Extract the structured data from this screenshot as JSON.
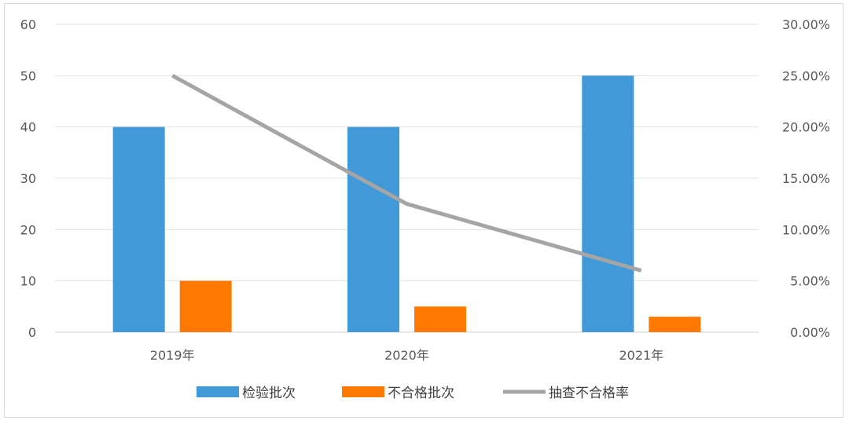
{
  "chart_data": {
    "type": "bar",
    "categories": [
      "2019年",
      "2020年",
      "2021年"
    ],
    "series": [
      {
        "name": "检验批次",
        "kind": "bar",
        "axis": "left",
        "color": "#4299d8",
        "values": [
          40,
          40,
          50
        ]
      },
      {
        "name": "不合格批次",
        "kind": "bar",
        "axis": "left",
        "color": "#ff7800",
        "values": [
          10,
          5,
          3
        ]
      },
      {
        "name": "抽查不合格率",
        "kind": "line",
        "axis": "right",
        "color": "#a5a5a5",
        "values": [
          25.0,
          12.5,
          6.0
        ]
      }
    ],
    "y_left": {
      "ylim": [
        0,
        60
      ],
      "ticks": [
        "0",
        "10",
        "20",
        "30",
        "40",
        "50",
        "60"
      ]
    },
    "y_right": {
      "ylim": [
        0,
        30
      ],
      "ticks": [
        "0.00%",
        "5.00%",
        "10.00%",
        "15.00%",
        "20.00%",
        "25.00%",
        "30.00%"
      ]
    },
    "grid": true,
    "legend_position": "bottom"
  }
}
